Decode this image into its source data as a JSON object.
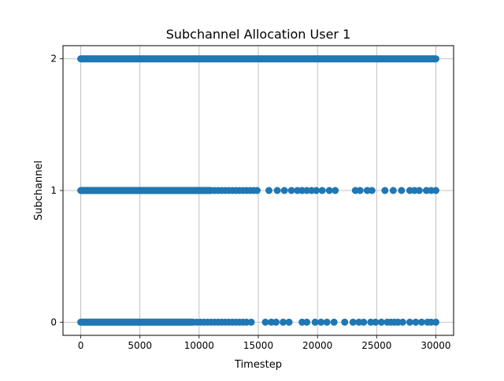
{
  "chart_data": {
    "type": "scatter",
    "title": "Subchannel Allocation User 1",
    "xlabel": "Timestep",
    "ylabel": "Subchannel",
    "xlim": [
      -1500,
      31500
    ],
    "ylim": [
      -0.1,
      2.1
    ],
    "xticks": [
      0,
      5000,
      10000,
      15000,
      20000,
      25000,
      30000
    ],
    "xtick_labels": [
      "0",
      "5000",
      "10000",
      "15000",
      "20000",
      "25000",
      "30000"
    ],
    "yticks": [
      0,
      1,
      2
    ],
    "ytick_labels": [
      "0",
      "1",
      "2"
    ],
    "grid": true,
    "legend": "none",
    "marker_color": "#1f77b4",
    "series": [
      {
        "y": 2,
        "segments": [
          [
            0,
            30000
          ]
        ],
        "points": []
      },
      {
        "y": 1,
        "segments": [
          [
            0,
            11000
          ]
        ],
        "points": [
          11300,
          11600,
          11900,
          12200,
          12500,
          12800,
          13100,
          13400,
          13700,
          14000,
          14300,
          14600,
          14900,
          15900,
          16600,
          17200,
          17800,
          18300,
          18700,
          19100,
          19500,
          19900,
          20400,
          21000,
          21500,
          23200,
          23600,
          24200,
          24600,
          25700,
          26400,
          27100,
          27800,
          28200,
          28600,
          29200,
          29600,
          30000
        ]
      },
      {
        "y": 0,
        "segments": [
          [
            0,
            9500
          ]
        ],
        "points": [
          9800,
          10100,
          10400,
          10700,
          11000,
          11300,
          11600,
          11900,
          12200,
          12500,
          12800,
          13100,
          13400,
          13700,
          14000,
          14400,
          15600,
          16100,
          16500,
          17100,
          17600,
          18700,
          19100,
          19800,
          20300,
          20800,
          21400,
          22300,
          23000,
          23500,
          23900,
          24500,
          24900,
          25400,
          25900,
          26200,
          26500,
          26800,
          27200,
          27800,
          28300,
          28800,
          29300,
          29600,
          30000
        ]
      }
    ]
  }
}
